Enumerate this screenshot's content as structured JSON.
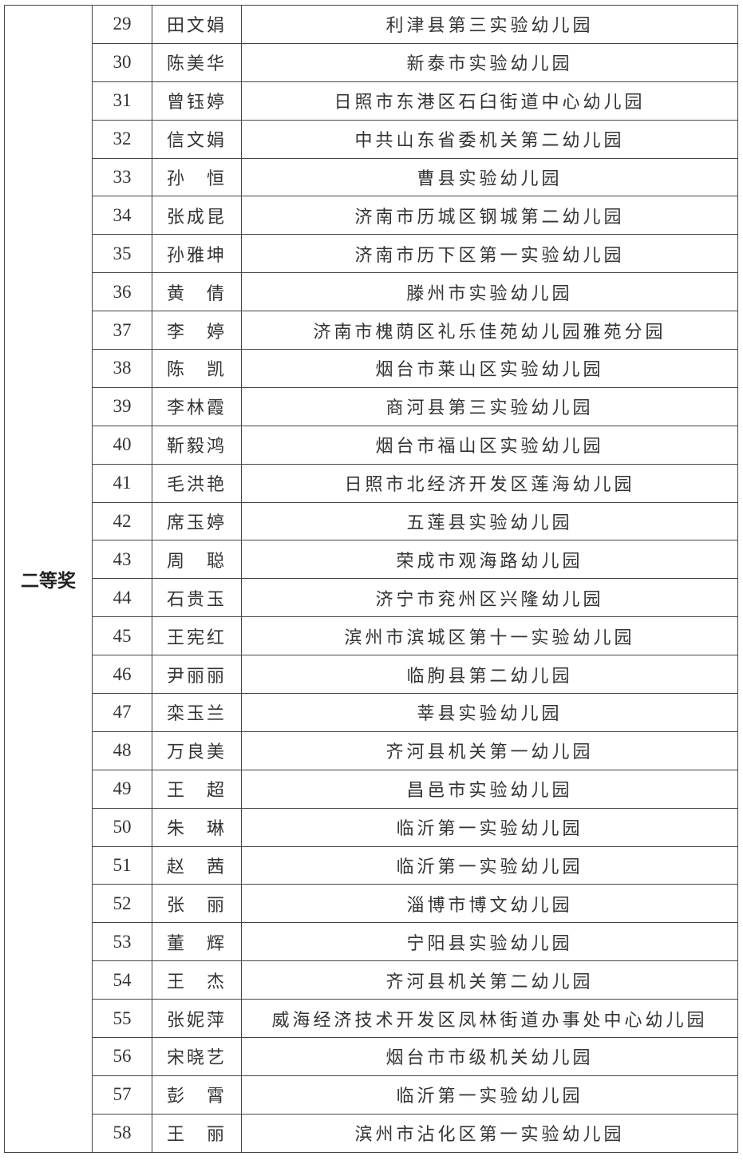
{
  "award": "二等奖",
  "rows": [
    {
      "no": "29",
      "name": "田文娟",
      "school": "利津县第三实验幼儿园"
    },
    {
      "no": "30",
      "name": "陈美华",
      "school": "新泰市实验幼儿园"
    },
    {
      "no": "31",
      "name": "曾钰婷",
      "school": "日照市东港区石臼街道中心幼儿园"
    },
    {
      "no": "32",
      "name": "信文娟",
      "school": "中共山东省委机关第二幼儿园"
    },
    {
      "no": "33",
      "name": "孙　恒",
      "school": "曹县实验幼儿园"
    },
    {
      "no": "34",
      "name": "张成昆",
      "school": "济南市历城区钢城第二幼儿园"
    },
    {
      "no": "35",
      "name": "孙雅坤",
      "school": "济南市历下区第一实验幼儿园"
    },
    {
      "no": "36",
      "name": "黄　倩",
      "school": "滕州市实验幼儿园"
    },
    {
      "no": "37",
      "name": "李　婷",
      "school": "济南市槐荫区礼乐佳苑幼儿园雅苑分园"
    },
    {
      "no": "38",
      "name": "陈　凯",
      "school": "烟台市莱山区实验幼儿园"
    },
    {
      "no": "39",
      "name": "李林霞",
      "school": "商河县第三实验幼儿园"
    },
    {
      "no": "40",
      "name": "靳毅鸿",
      "school": "烟台市福山区实验幼儿园"
    },
    {
      "no": "41",
      "name": "毛洪艳",
      "school": "日照市北经济开发区莲海幼儿园"
    },
    {
      "no": "42",
      "name": "席玉婷",
      "school": "五莲县实验幼儿园"
    },
    {
      "no": "43",
      "name": "周　聪",
      "school": "荣成市观海路幼儿园"
    },
    {
      "no": "44",
      "name": "石贵玉",
      "school": "济宁市兖州区兴隆幼儿园"
    },
    {
      "no": "45",
      "name": "王宪红",
      "school": "滨州市滨城区第十一实验幼儿园"
    },
    {
      "no": "46",
      "name": "尹丽丽",
      "school": "临朐县第二幼儿园"
    },
    {
      "no": "47",
      "name": "栾玉兰",
      "school": "莘县实验幼儿园"
    },
    {
      "no": "48",
      "name": "万良美",
      "school": "齐河县机关第一幼儿园"
    },
    {
      "no": "49",
      "name": "王　超",
      "school": "昌邑市实验幼儿园"
    },
    {
      "no": "50",
      "name": "朱　琳",
      "school": "临沂第一实验幼儿园"
    },
    {
      "no": "51",
      "name": "赵　茜",
      "school": "临沂第一实验幼儿园"
    },
    {
      "no": "52",
      "name": "张　丽",
      "school": "淄博市博文幼儿园"
    },
    {
      "no": "53",
      "name": "董　辉",
      "school": "宁阳县实验幼儿园"
    },
    {
      "no": "54",
      "name": "王　杰",
      "school": "齐河县机关第二幼儿园"
    },
    {
      "no": "55",
      "name": "张妮萍",
      "school": "威海经济技术开发区凤林街道办事处中心幼儿园"
    },
    {
      "no": "56",
      "name": "宋晓艺",
      "school": "烟台市市级机关幼儿园"
    },
    {
      "no": "57",
      "name": "彭　霄",
      "school": "临沂第一实验幼儿园"
    },
    {
      "no": "58",
      "name": "王　丽",
      "school": "滨州市沾化区第一实验幼儿园"
    }
  ]
}
